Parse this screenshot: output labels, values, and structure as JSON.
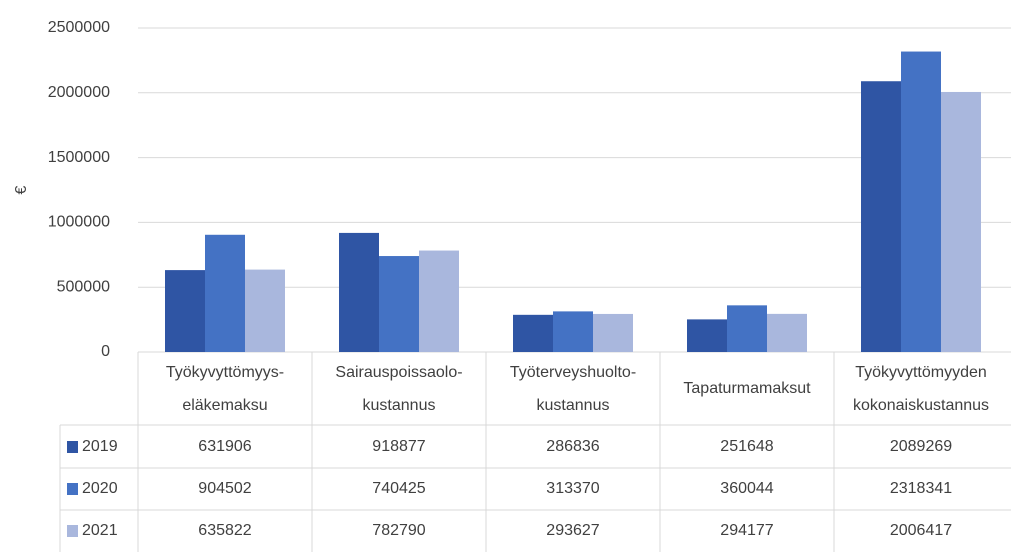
{
  "chart_data": {
    "type": "bar",
    "y_label": "€",
    "categories": [
      "Työkyvyttömyys-eläkemaksu",
      "Sairauspoissaolo-kustannus",
      "Työterveyshuolto-kustannus",
      "Tapaturmamaksut",
      "Työkyvyttömyyden kokonaiskustannus"
    ],
    "series": [
      {
        "name": "2019",
        "color": "#2f55a4",
        "values": [
          631906,
          918877,
          286836,
          251648,
          2089269
        ]
      },
      {
        "name": "2020",
        "color": "#4472c4",
        "values": [
          904502,
          740425,
          313370,
          360044,
          2318341
        ]
      },
      {
        "name": "2021",
        "color": "#a9b7dd",
        "values": [
          635822,
          782790,
          293627,
          294177,
          2006417
        ]
      }
    ],
    "ylim": [
      0,
      2500000
    ],
    "yticks": [
      0,
      500000,
      1000000,
      1500000,
      2000000,
      2500000
    ],
    "grid": true
  }
}
